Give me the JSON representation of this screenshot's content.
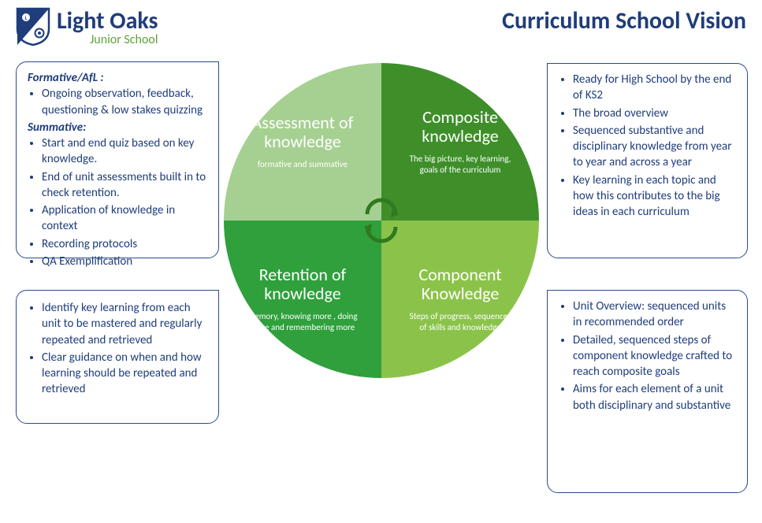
{
  "colors": {
    "navy": "#1f3d7a",
    "green_logo": "#5ea33a",
    "q_tl": "#a6d091",
    "q_tr": "#3e8f2a",
    "q_bl": "#2fa03c",
    "q_br": "#8bc34a",
    "arrow": "#2f7a1e"
  },
  "logo": {
    "main": "Light Oaks",
    "sub": "Junior School"
  },
  "title": "Curriculum School Vision",
  "quadrants": {
    "tl": {
      "title": "Assessment of knowledge",
      "sub": "formative and summative"
    },
    "tr": {
      "title": "Composite knowledge",
      "sub": "The big picture, key learning,  goals of the curriculum"
    },
    "bl": {
      "title": "Retention of knowledge",
      "sub": "memory, knowing more , doing more and remembering  more"
    },
    "br": {
      "title": "Component Knowledge",
      "sub": "Steps of progress, sequences of skills and knowledge"
    }
  },
  "boxes": {
    "tl": {
      "h1": "Formative/AfL :",
      "b1": [
        "Ongoing observation, feedback, questioning & low stakes quizzing"
      ],
      "h2": "Summative:",
      "b2": [
        "Start and end quiz based on key knowledge.",
        "End of unit assessments built in to check retention.",
        "Application of knowledge in context",
        "Recording protocols",
        "QA Exemplification"
      ]
    },
    "tr": [
      "Ready for High School by the end of KS2",
      "The broad overview",
      "Sequenced substantive and disciplinary knowledge from year to year  and across a year",
      "Key learning in each topic and how this contributes to the big ideas in each curriculum"
    ],
    "bl": [
      "Identify key learning from each unit to be mastered and regularly repeated and retrieved",
      "Clear guidance on when and how learning should be repeated and retrieved"
    ],
    "br": [
      " Unit Overview: sequenced units in recommended order",
      " Detailed, sequenced steps of component knowledge crafted to reach composite goals",
      " Aims for each element of a unit both disciplinary and substantive"
    ]
  }
}
